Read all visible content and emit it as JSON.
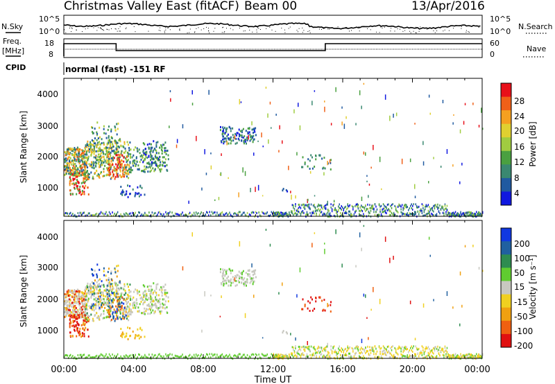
{
  "header": {
    "title": "Christmas Valley East (fitACF)",
    "beam": "Beam 00",
    "date": "13/Apr/2016"
  },
  "noise_panel": {
    "left_label": "N.Sky",
    "right_label": "N.Search",
    "left_ticks": [
      "10^5",
      "10^0"
    ],
    "right_ticks": [
      "10^5",
      "10^0"
    ]
  },
  "freq_panel": {
    "left_label_1": "Freq.",
    "left_label_2": "[MHz]",
    "right_label": "Nave",
    "left_ticks": [
      "18",
      "8"
    ],
    "right_ticks": [
      "60",
      "0"
    ],
    "high_segments_hours": [
      [
        0,
        3.0
      ],
      [
        15.0,
        24.0
      ]
    ]
  },
  "cpid": {
    "label": "CPID",
    "value": "normal (fast) -151 RF"
  },
  "chart_data": [
    {
      "type": "heatmap",
      "name": "power",
      "ylabel": "Slant Range [km]",
      "yticks": [
        "4000",
        "3000",
        "2000",
        "1000"
      ],
      "colorbar_label": "Power [dB]",
      "colorbar_ticks": [
        "28",
        "24",
        "20",
        "16",
        "12",
        "8",
        "4"
      ],
      "colorbar_colors": [
        "#e8101a",
        "#f06018",
        "#f5a020",
        "#e0d030",
        "#a0cc40",
        "#4aa040",
        "#3a8870",
        "#205aa0",
        "#1018e0"
      ]
    },
    {
      "type": "heatmap",
      "name": "velocity",
      "ylabel": "Slant Range [km]",
      "yticks": [
        "4000",
        "3000",
        "2000",
        "1000"
      ],
      "colorbar_label": "Velocity [m s⁻¹]",
      "colorbar_ticks": [
        "200",
        "100",
        "50",
        "15",
        "-15",
        "-50",
        "-100",
        "-200"
      ],
      "colorbar_colors": [
        "#1038e0",
        "#2060a0",
        "#2e8c50",
        "#60cc30",
        "#c8c8c0",
        "#f0d020",
        "#f0a010",
        "#f06010",
        "#e01010"
      ]
    }
  ],
  "x_axis": {
    "ticks": [
      "00:00",
      "04:00",
      "08:00",
      "12:00",
      "16:00",
      "20:00",
      "00:00"
    ],
    "label": "Time UT"
  }
}
